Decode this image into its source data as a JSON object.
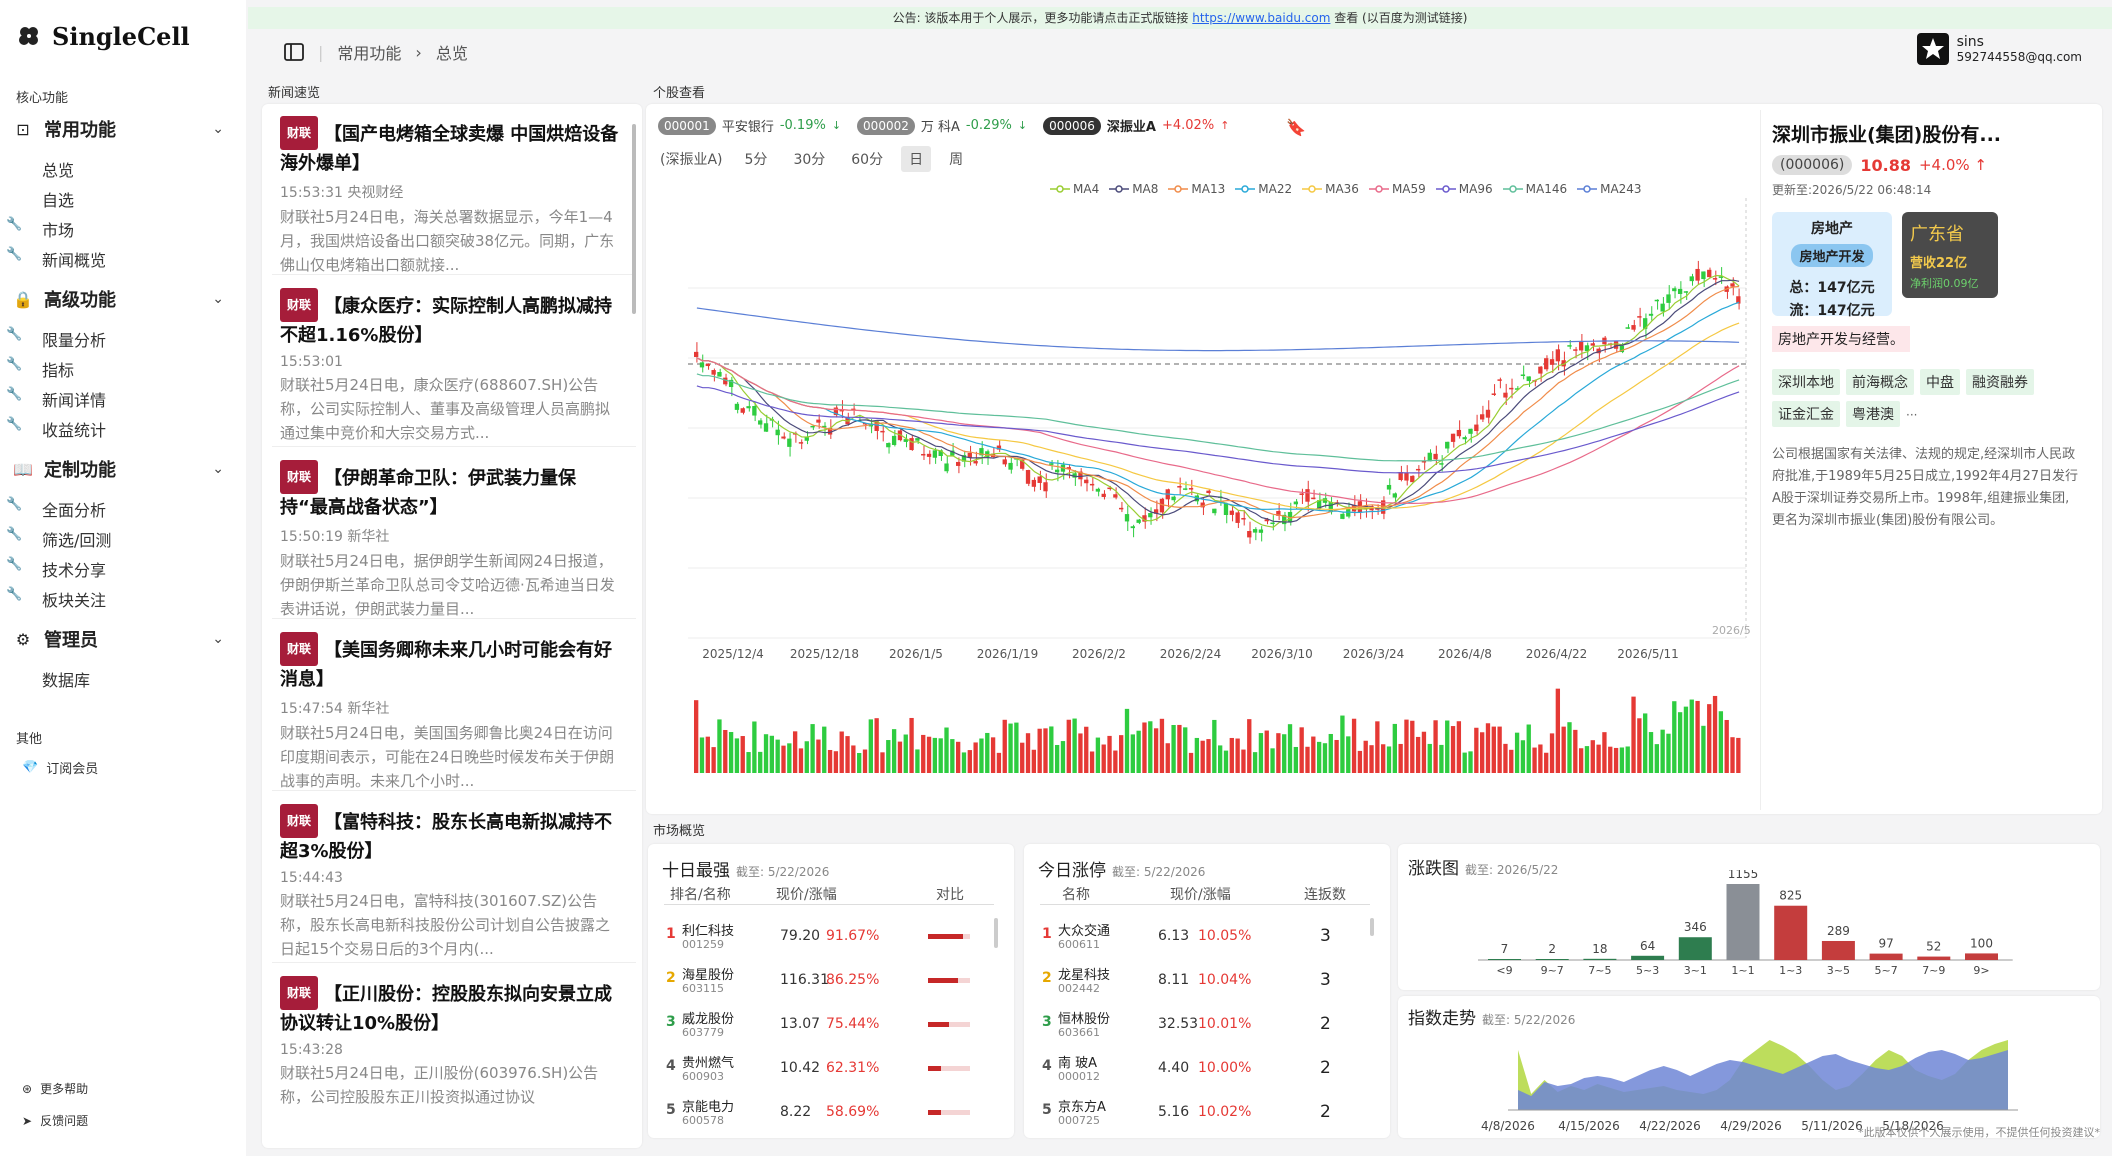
{
  "app": {
    "name": "SingleCell"
  },
  "sidebar": {
    "core_label": "核心功能",
    "groups": [
      {
        "label": "常用功能",
        "items": [
          "总览",
          "自选",
          "市场",
          "新闻概览"
        ]
      },
      {
        "label": "高级功能",
        "items": [
          "限量分析",
          "指标",
          "新闻详情",
          "收益统计"
        ]
      },
      {
        "label": "定制功能",
        "items": [
          "全面分析",
          "筛选/回测",
          "技术分享",
          "板块关注"
        ]
      },
      {
        "label": "管理员",
        "items": [
          "数据库"
        ]
      }
    ],
    "other_label": "其他",
    "subscribe": "订阅会员",
    "help": "更多帮助",
    "feedback": "反馈问题"
  },
  "banner": {
    "text": "公告: 该版本用于个人展示，更多功能请点击正式版链接",
    "link": "https://www.baidu.com",
    "suffix": "查看 (以百度为测试链接)"
  },
  "breadcrumb": [
    "常用功能",
    "总览"
  ],
  "user": {
    "name": "sins",
    "email": "592744558@qq.com"
  },
  "news": {
    "label": "新闻速览",
    "tag": "财联",
    "items": [
      {
        "title": "【国产电烤箱全球卖爆 中国烘焙设备海外爆单】",
        "time": "15:53:31 央视财经",
        "body": "财联社5月24日电，海关总署数据显示，今年1—4月，我国烘焙设备出口额突破38亿元。同期，广东佛山仅电烤箱出口额就接..."
      },
      {
        "title": "【康众医疗：实际控制人高鹏拟减持不超1.16%股份】",
        "time": "15:53:01",
        "body": "财联社5月24日电，康众医疗(688607.SH)公告称，公司实际控制人、董事及高级管理人员高鹏拟通过集中竞价和大宗交易方式..."
      },
      {
        "title": "【伊朗革命卫队：伊武装力量保持“最高战备状态”】",
        "time": "15:50:19 新华社",
        "body": "财联社5月24日电，据伊朗学生新闻网24日报道，伊朗伊斯兰革命卫队总司令艾哈迈德·瓦希迪当日发表讲话说，伊朗武装力量目..."
      },
      {
        "title": "【美国务卿称未来几小时可能会有好消息】",
        "time": "15:47:54 新华社",
        "body": "财联社5月24日电，美国国务卿鲁比奥24日在访问印度期间表示，可能在24日晚些时候发布关于伊朗战事的声明。未来几个小时..."
      },
      {
        "title": "【富特科技：股东长高电新拟减持不超3%股份】",
        "time": "15:44:43",
        "body": "财联社5月24日电，富特科技(301607.SZ)公告称，股东长高电新科技股份公司计划自公告披露之日起15个交易日后的3个月内(..."
      },
      {
        "title": "【正川股份：控股股东拟向安景立成协议转让10%股份】",
        "time": "15:43:28",
        "body": "财联社5月24日电，正川股份(603976.SH)公告称，公司控股股东正川投资拟通过协议"
      }
    ]
  },
  "stock": {
    "label": "个股查看",
    "watch": [
      {
        "code": "000001",
        "name": "平安银行",
        "chg": "-0.19%",
        "dir": "dn"
      },
      {
        "code": "000002",
        "name": "万 科A",
        "chg": "-0.29%",
        "dir": "dn"
      },
      {
        "code": "000006",
        "name": "深振业A",
        "chg": "+4.02%",
        "dir": "up"
      }
    ],
    "current": "(深振业A)",
    "periods": [
      "5分",
      "30分",
      "60分",
      "日",
      "周"
    ],
    "active_period": "日",
    "legend": [
      "MA4",
      "MA8",
      "MA13",
      "MA22",
      "MA36",
      "MA59",
      "MA96",
      "MA146",
      "MA243"
    ],
    "legend_colors": [
      "#9acd32",
      "#4b4b7a",
      "#f08c4a",
      "#29a9d8",
      "#f5c842",
      "#e86a8a",
      "#6a5acd",
      "#5fbf9a",
      "#5b7fd6"
    ],
    "xticks": [
      "2025/12/4",
      "2025/12/18",
      "2026/1/5",
      "2026/1/19",
      "2026/2/2",
      "2026/2/24",
      "2026/3/10",
      "2026/3/24",
      "2026/4/8",
      "2026/4/22",
      "2026/5/11"
    ],
    "last_date": "2026/5"
  },
  "info": {
    "title": "深圳市振业(集团)股份有...",
    "code": "(000006)",
    "price": "10.88",
    "chg": "+4.0% ↑",
    "updated": "更新至:2026/5/22 06:48:14",
    "sector": "房地产",
    "subsector": "房地产开发",
    "total": "总：147亿元",
    "float": "流：147亿元",
    "province": "广东省",
    "revenue": "营收22亿",
    "profit": "净利润0.09亿",
    "business": "房地产开发与经营。",
    "tags": [
      "深圳本地",
      "前海概念",
      "中盘",
      "融资融券",
      "证金汇金",
      "粤港澳"
    ],
    "more": "···",
    "desc": "公司根据国家有关法律、法规的规定,经深圳市人民政府批准,于1989年5月25日成立,1992年4月27日发行A股于深圳证券交易所上市。1998年,组建振业集团,更名为深圳市振业(集团)股份有限公司。"
  },
  "market": {
    "label": "市场概览",
    "strong": {
      "title": "十日最强",
      "date": "截至: 5/22/2026",
      "headers": [
        "排名/名称",
        "现价/涨幅",
        "对比"
      ],
      "rows": [
        {
          "rank": "1",
          "name": "利仁科技",
          "code": "001259",
          "price": "79.20",
          "chg": "91.67%",
          "ratio": 0.92
        },
        {
          "rank": "2",
          "name": "海星股份",
          "code": "603115",
          "price": "116.31",
          "chg": "86.25%",
          "ratio": 0.86
        },
        {
          "rank": "3",
          "name": "威龙股份",
          "code": "603779",
          "price": "13.07",
          "chg": "75.44%",
          "ratio": 0.75
        },
        {
          "rank": "4",
          "name": "贵州燃气",
          "code": "600903",
          "price": "10.42",
          "chg": "62.31%",
          "ratio": 0.62
        },
        {
          "rank": "5",
          "name": "京能电力",
          "code": "600578",
          "price": "8.22",
          "chg": "58.69%",
          "ratio": 0.59
        }
      ]
    },
    "limit": {
      "title": "今日涨停",
      "date": "截至: 5/22/2026",
      "headers": [
        "名称",
        "现价/涨幅",
        "连扳数"
      ],
      "rows": [
        {
          "rank": "1",
          "name": "大众交通",
          "code": "600611",
          "price": "6.13",
          "chg": "10.05%",
          "days": "3"
        },
        {
          "rank": "2",
          "name": "龙星科技",
          "code": "002442",
          "price": "8.11",
          "chg": "10.04%",
          "days": "3"
        },
        {
          "rank": "3",
          "name": "恒林股份",
          "code": "603661",
          "price": "32.53",
          "chg": "10.01%",
          "days": "2"
        },
        {
          "rank": "4",
          "name": "南 玻A",
          "code": "000012",
          "price": "4.40",
          "chg": "10.00%",
          "days": "2"
        },
        {
          "rank": "5",
          "name": "京东方A",
          "code": "000725",
          "price": "5.16",
          "chg": "10.02%",
          "days": "2"
        }
      ]
    },
    "dist": {
      "title": "涨跌图",
      "date": "截至: 2026/5/22"
    },
    "index": {
      "title": "指数走势",
      "date": "截至: 5/22/2026",
      "xticks": [
        "4/8/2026",
        "4/15/2026",
        "4/22/2026",
        "4/29/2026",
        "5/11/2026",
        "5/18/2026"
      ]
    }
  },
  "footer_note": "*此版本仅供个人展示使用，不提供任何投资建议*",
  "chart_data": {
    "type": "bar",
    "title": "涨跌图",
    "categories": [
      "<9",
      "9~7",
      "7~5",
      "5~3",
      "3~1",
      "1~1",
      "1~3",
      "3~5",
      "5~7",
      "7~9",
      "9>"
    ],
    "values": [
      7,
      2,
      18,
      64,
      346,
      1155,
      825,
      289,
      97,
      52,
      100
    ],
    "colors": [
      "#2e7d4f",
      "#2e7d4f",
      "#2e7d4f",
      "#2e7d4f",
      "#2e7d4f",
      "#8a8f96",
      "#c43d3d",
      "#c43d3d",
      "#c43d3d",
      "#c43d3d",
      "#c43d3d"
    ]
  }
}
